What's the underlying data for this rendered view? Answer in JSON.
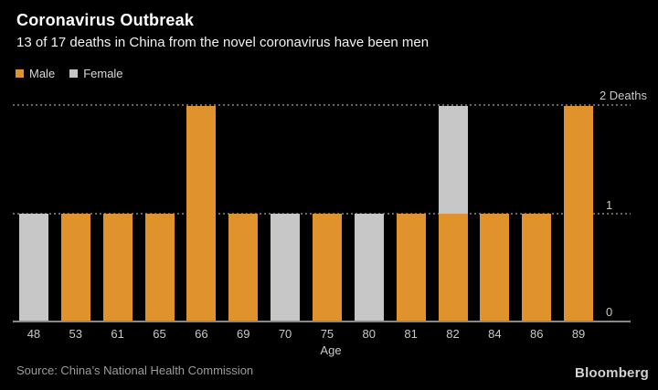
{
  "header": {
    "title": "Coronavirus Outbreak",
    "subtitle": "13 of 17 deaths in China from the novel coronavirus have been men"
  },
  "legend": {
    "items": [
      {
        "label": "Male",
        "color": "#E0922C"
      },
      {
        "label": "Female",
        "color": "#C7C7C7"
      }
    ]
  },
  "chart_data": {
    "type": "bar",
    "stacked": true,
    "title": "Coronavirus Outbreak",
    "subtitle": "13 of 17 deaths in China from the novel coronavirus have been men",
    "categories": [
      "48",
      "53",
      "61",
      "65",
      "66",
      "69",
      "70",
      "75",
      "80",
      "81",
      "82",
      "84",
      "86",
      "89"
    ],
    "series": [
      {
        "name": "Male",
        "color": "#E0922C",
        "values": [
          0,
          1,
          1,
          1,
          2,
          1,
          0,
          1,
          0,
          1,
          1,
          1,
          1,
          2
        ]
      },
      {
        "name": "Female",
        "color": "#C7C7C7",
        "values": [
          1,
          0,
          0,
          0,
          0,
          0,
          1,
          0,
          1,
          0,
          1,
          0,
          0,
          0
        ]
      }
    ],
    "xlabel": "Age",
    "ylabel": "Deaths",
    "ylim": [
      0,
      2
    ],
    "yticks": [
      {
        "value": 0,
        "label": "0"
      },
      {
        "value": 1,
        "label": "1"
      },
      {
        "value": 2,
        "label": "2 Deaths"
      }
    ],
    "grid": "horizontal-dotted",
    "legend_position": "top-left",
    "colors": {
      "background": "#000000",
      "grid": "#666666",
      "baseline": "#8a8a8a",
      "tick_text": "#c9c9c9"
    }
  },
  "footer": {
    "source": "Source: China’s National Health Commission",
    "brand": "Bloomberg"
  }
}
